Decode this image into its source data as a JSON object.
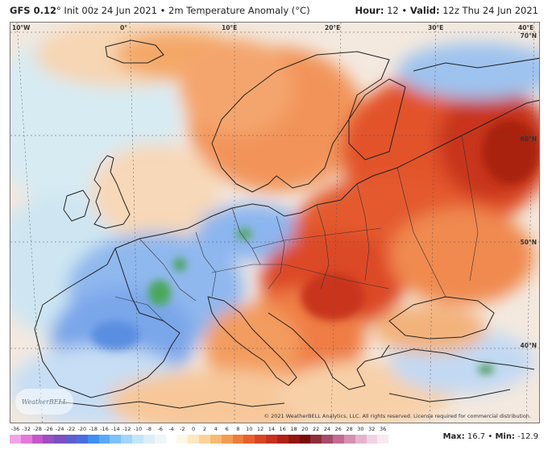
{
  "header": {
    "model": "GFS 0.12",
    "degree": "°",
    "init": " Init 00z 24 Jun 2021",
    "bullet": " • ",
    "variable": "2m Temperature Anomaly (°C)",
    "hour_label": "Hour:",
    "hour_value": " 12 • ",
    "valid_label": "Valid:",
    "valid_value": " 12z Thu 24 Jun 2021"
  },
  "axes": {
    "lon_labels": [
      "10°W",
      "0°",
      "10°E",
      "20°E",
      "30°E",
      "40°E"
    ],
    "lat_labels": [
      "70°N",
      "60°N",
      "50°N",
      "40°N"
    ]
  },
  "copyright": "© 2021 WeatherBELL Analytics, LLC. All rights reserved. License required for commercial distribution.",
  "logo": "WeatherBELL",
  "colorbar": {
    "ticks": [
      "-36",
      "-32",
      "-28",
      "-26",
      "-24",
      "-22",
      "-20",
      "-18",
      "-16",
      "-14",
      "-12",
      "-10",
      "-8",
      "-6",
      "-4",
      "-2",
      "0",
      "2",
      "4",
      "6",
      "8",
      "10",
      "12",
      "14",
      "16",
      "18",
      "20",
      "22",
      "24",
      "26",
      "28",
      "30",
      "32",
      "36"
    ],
    "colors": [
      "#f2a3e8",
      "#e47ad8",
      "#c457c9",
      "#9b4fc0",
      "#7a51bf",
      "#5e5fcf",
      "#4a6ee0",
      "#3f8ff0",
      "#5aa8f4",
      "#7cc1f7",
      "#a2d6f8",
      "#c3e5f8",
      "#ddeef6",
      "#eef6f8",
      "#ffffff",
      "#fff8e6",
      "#fde8c2",
      "#fbd39a",
      "#f8ba73",
      "#f49b52",
      "#ee7c3b",
      "#e65f2c",
      "#d94523",
      "#c7311d",
      "#b02218",
      "#941611",
      "#7a0d0c",
      "#8c2d3a",
      "#a84a6a",
      "#c26c90",
      "#d690b0",
      "#e6b3cc",
      "#f2d3e3",
      "#f9e8f0"
    ]
  },
  "stats": {
    "max_label": "Max:",
    "max_value": "16.7",
    "sep": " • ",
    "min_label": "Min:",
    "min_value": "-12.9"
  }
}
